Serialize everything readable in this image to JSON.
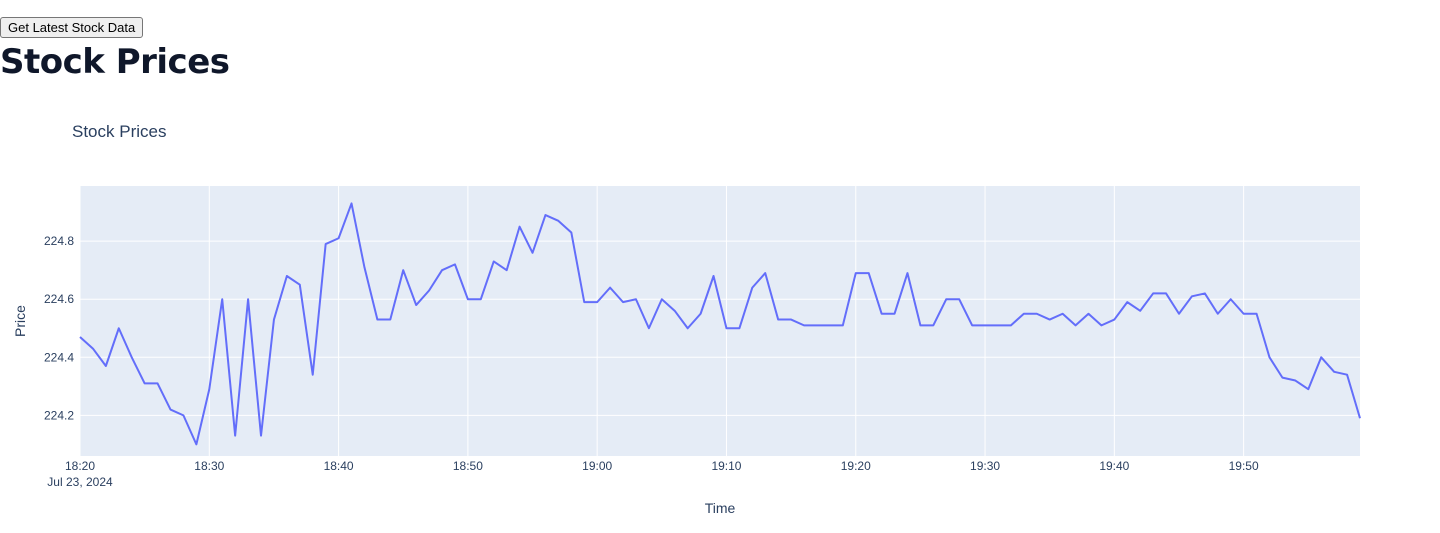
{
  "page": {
    "button_label": "Get Latest Stock Data",
    "heading": "Stock Prices"
  },
  "colors": {
    "line": "#636efa",
    "plot_bg": "#e5ecf6",
    "grid": "#ffffff",
    "text": "#2a3f5f",
    "heading": "#0f172a"
  },
  "chart_data": {
    "type": "line",
    "title": "Stock Prices",
    "xlabel": "Time",
    "ylabel": "Price",
    "x_start": "18:20",
    "x_interval_minutes": 1,
    "xlim": [
      "18:20",
      "19:59"
    ],
    "ylim": [
      224.06,
      224.99
    ],
    "x_ticks": [
      "18:20",
      "18:30",
      "18:40",
      "18:50",
      "19:00",
      "19:10",
      "19:20",
      "19:30",
      "19:40",
      "19:50"
    ],
    "x_tick_sublabel": "Jul 23, 2024",
    "y_ticks": [
      "224.2",
      "224.4",
      "224.6",
      "224.8"
    ],
    "grid": true,
    "series": [
      {
        "values": [
          224.47,
          224.43,
          224.37,
          224.5,
          224.4,
          224.31,
          224.31,
          224.22,
          224.2,
          224.1,
          224.29,
          224.6,
          224.13,
          224.6,
          224.13,
          224.53,
          224.68,
          224.65,
          224.34,
          224.79,
          224.81,
          224.93,
          224.71,
          224.53,
          224.53,
          224.7,
          224.58,
          224.63,
          224.7,
          224.72,
          224.6,
          224.6,
          224.73,
          224.7,
          224.85,
          224.76,
          224.89,
          224.87,
          224.83,
          224.59,
          224.59,
          224.64,
          224.59,
          224.6,
          224.5,
          224.6,
          224.56,
          224.5,
          224.55,
          224.68,
          224.5,
          224.5,
          224.64,
          224.69,
          224.53,
          224.53,
          224.51,
          224.51,
          224.51,
          224.51,
          224.69,
          224.69,
          224.55,
          224.55,
          224.69,
          224.51,
          224.51,
          224.6,
          224.6,
          224.51,
          224.51,
          224.51,
          224.51,
          224.55,
          224.55,
          224.53,
          224.55,
          224.51,
          224.55,
          224.51,
          224.53,
          224.59,
          224.56,
          224.62,
          224.62,
          224.55,
          224.61,
          224.62,
          224.55,
          224.6,
          224.55,
          224.55,
          224.4,
          224.33,
          224.32,
          224.29,
          224.4,
          224.35,
          224.34,
          224.19
        ]
      }
    ]
  }
}
